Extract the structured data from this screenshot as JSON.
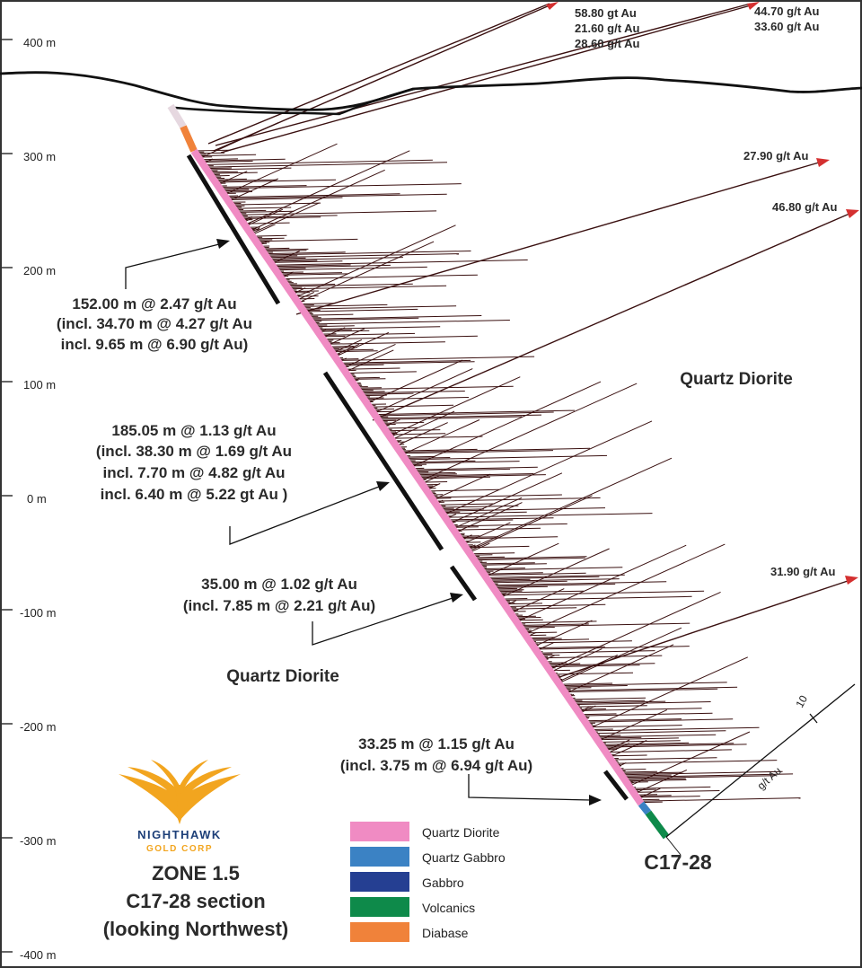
{
  "elevation_labels": [
    "400 m",
    "300 m",
    "200 m",
    "100 m",
    "0 m",
    "-100 m",
    "-200 m",
    "-300 m",
    "-400 m"
  ],
  "top_grades": {
    "group1": [
      "58.80 gt Au",
      "21.60 g/t Au",
      "28.60 g/t Au"
    ],
    "group2": [
      "44.70 g/t Au",
      "33.60 g/t Au"
    ]
  },
  "side_grades": [
    "27.90 g/t Au",
    "46.80 g/t Au",
    "31.90 g/t Au"
  ],
  "intercepts": [
    {
      "lines": [
        "152.00 m @ 2.47 g/t Au",
        "(incl. 34.70 m @ 4.27 g/t Au",
        "incl. 9.65 m @ 6.90 g/t Au)"
      ]
    },
    {
      "lines": [
        "185.05 m @ 1.13 g/t Au",
        "(incl. 38.30 m @ 1.69 g/t Au",
        "incl. 7.70 m @ 4.82 g/t Au",
        "incl. 6.40 m @ 5.22 gt Au )"
      ]
    },
    {
      "lines": [
        "35.00 m @ 1.02 g/t Au",
        "(incl. 7.85 m @ 2.21 g/t Au)"
      ]
    },
    {
      "lines": [
        "33.25 m @ 1.15 g/t Au",
        "(incl. 3.75 m @ 6.94 g/t Au)"
      ]
    }
  ],
  "rock_labels": [
    "Quartz Diorite",
    "Quartz Diorite"
  ],
  "hole_id": "C17-28",
  "scale": {
    "tick": "10",
    "unit": "g/t Au"
  },
  "legend": [
    {
      "label": "Quartz Diorite",
      "color": "#f08bc3"
    },
    {
      "label": "Quartz Gabbro",
      "color": "#3b82c4"
    },
    {
      "label": "Gabbro",
      "color": "#253f92"
    },
    {
      "label": "Volcanics",
      "color": "#0e8a4a"
    },
    {
      "label": "Diabase",
      "color": "#f0823a"
    }
  ],
  "logo": {
    "name": "NIGHTHAWK",
    "sub": "GOLD CORP"
  },
  "section_title": [
    "ZONE 1.5",
    "C17-28 section",
    "(looking Northwest)"
  ],
  "colors": {
    "assay": "#3a1010",
    "arrow": "#d43030",
    "intercept": "#111111",
    "logo_gold": "#f2a51f",
    "logo_blue": "#1d3f78"
  }
}
